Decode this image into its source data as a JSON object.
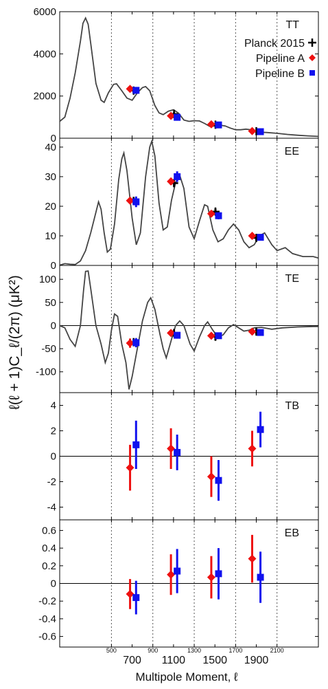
{
  "figure": {
    "ylabel": "ℓ(ℓ + 1)C_ℓ/(2π) (μK²)",
    "xlabel": "Multipole Moment, ℓ",
    "x_major_ticks": [
      "700",
      "1100",
      "1500",
      "1900"
    ],
    "x_minor_ticks": [
      "500",
      "900",
      "1300",
      "1700",
      "2100"
    ],
    "legend": [
      {
        "label": "Planck 2015",
        "marker": "plus",
        "color": "#000000"
      },
      {
        "label": "Pipeline A",
        "marker": "diamond",
        "color": "#ee1111"
      },
      {
        "label": "Pipeline B",
        "marker": "square",
        "color": "#1111ee"
      }
    ]
  },
  "chart_data": [
    {
      "type": "scatter",
      "panel": "TT",
      "ylim": [
        0,
        6000
      ],
      "yticks": [
        0,
        2000,
        4000,
        6000
      ],
      "series": [
        {
          "name": "Planck 2015",
          "points": [
            [
              714,
              2260,
              120
            ],
            [
              1105,
              1150,
              80
            ],
            [
              1505,
              640,
              60
            ],
            [
              1900,
              330,
              50
            ]
          ]
        },
        {
          "name": "Pipeline A",
          "points": [
            [
              680,
              2340,
              100
            ],
            [
              1075,
              1060,
              80
            ],
            [
              1465,
              660,
              60
            ],
            [
              1860,
              340,
              50
            ]
          ]
        },
        {
          "name": "Pipeline B",
          "points": [
            [
              738,
              2270,
              120
            ],
            [
              1135,
              990,
              80
            ],
            [
              1535,
              630,
              60
            ],
            [
              1940,
              310,
              50
            ]
          ]
        }
      ]
    },
    {
      "type": "scatter",
      "panel": "EE",
      "ylim": [
        0,
        43
      ],
      "yticks": [
        0,
        10,
        20,
        30,
        40
      ],
      "series": [
        {
          "name": "Planck 2015",
          "points": [
            [
              714,
              21.8,
              1.0
            ],
            [
              1105,
              27.8,
              1.2
            ],
            [
              1505,
              18.2,
              1.0
            ],
            [
              1900,
              9.3,
              1.0
            ]
          ]
        },
        {
          "name": "Pipeline A",
          "points": [
            [
              680,
              21.9,
              1.0
            ],
            [
              1075,
              28.4,
              1.2
            ],
            [
              1465,
              17.5,
              1.0
            ],
            [
              1860,
              10.0,
              1.0
            ]
          ]
        },
        {
          "name": "Pipeline B",
          "points": [
            [
              738,
              21.5,
              1.8
            ],
            [
              1135,
              30.0,
              1.8
            ],
            [
              1535,
              16.8,
              1.2
            ],
            [
              1940,
              9.5,
              1.0
            ]
          ]
        }
      ]
    },
    {
      "type": "scatter",
      "panel": "TE",
      "ylim": [
        -145,
        130
      ],
      "yticks": [
        -100,
        -50,
        0,
        50,
        100
      ],
      "series": [
        {
          "name": "Planck 2015",
          "points": [
            [
              714,
              -36,
              6
            ],
            [
              1105,
              -16,
              6
            ],
            [
              1505,
              -24,
              8
            ],
            [
              1900,
              -13,
              6
            ]
          ]
        },
        {
          "name": "Pipeline A",
          "points": [
            [
              680,
              -38,
              10
            ],
            [
              1075,
              -16,
              6
            ],
            [
              1465,
              -22,
              6
            ],
            [
              1860,
              -13,
              5
            ]
          ]
        },
        {
          "name": "Pipeline B",
          "points": [
            [
              738,
              -37,
              10
            ],
            [
              1135,
              -21,
              7
            ],
            [
              1535,
              -22,
              6
            ],
            [
              1940,
              -15,
              5
            ]
          ]
        }
      ]
    },
    {
      "type": "scatter",
      "panel": "TB",
      "ylim": [
        -5,
        5
      ],
      "yticks": [
        -4,
        -2,
        0,
        2,
        4
      ],
      "series": [
        {
          "name": "Pipeline A",
          "points": [
            [
              680,
              -0.9,
              1.8
            ],
            [
              1075,
              0.6,
              1.6
            ],
            [
              1465,
              -1.6,
              1.6
            ],
            [
              1860,
              0.6,
              1.4
            ]
          ]
        },
        {
          "name": "Pipeline B",
          "points": [
            [
              738,
              0.9,
              1.9
            ],
            [
              1135,
              0.3,
              1.4
            ],
            [
              1535,
              -1.9,
              1.6
            ],
            [
              1940,
              2.1,
              1.4
            ]
          ]
        }
      ]
    },
    {
      "type": "scatter",
      "panel": "EB",
      "ylim": [
        -0.72,
        0.72
      ],
      "yticks": [
        -0.6,
        -0.4,
        -0.2,
        0,
        0.2,
        0.4,
        0.6
      ],
      "series": [
        {
          "name": "Pipeline A",
          "points": [
            [
              680,
              -0.12,
              0.17
            ],
            [
              1075,
              0.1,
              0.23
            ],
            [
              1465,
              0.07,
              0.24
            ],
            [
              1860,
              0.28,
              0.27
            ]
          ]
        },
        {
          "name": "Pipeline B",
          "points": [
            [
              738,
              -0.16,
              0.19
            ],
            [
              1135,
              0.14,
              0.25
            ],
            [
              1535,
              0.11,
              0.29
            ],
            [
              1940,
              0.07,
              0.29
            ]
          ]
        }
      ]
    }
  ],
  "theory_curves": {
    "TT": [
      [
        0,
        800
      ],
      [
        50,
        1000
      ],
      [
        100,
        1900
      ],
      [
        150,
        3100
      ],
      [
        200,
        4600
      ],
      [
        225,
        5450
      ],
      [
        250,
        5700
      ],
      [
        275,
        5400
      ],
      [
        300,
        4500
      ],
      [
        350,
        2600
      ],
      [
        400,
        1800
      ],
      [
        430,
        1700
      ],
      [
        470,
        2150
      ],
      [
        520,
        2550
      ],
      [
        550,
        2580
      ],
      [
        600,
        2250
      ],
      [
        650,
        1900
      ],
      [
        700,
        1800
      ],
      [
        750,
        2150
      ],
      [
        800,
        2400
      ],
      [
        830,
        2450
      ],
      [
        870,
        2250
      ],
      [
        920,
        1550
      ],
      [
        960,
        1200
      ],
      [
        1000,
        1120
      ],
      [
        1050,
        1280
      ],
      [
        1100,
        1350
      ],
      [
        1150,
        1180
      ],
      [
        1200,
        860
      ],
      [
        1250,
        800
      ],
      [
        1300,
        830
      ],
      [
        1350,
        820
      ],
      [
        1400,
        700
      ],
      [
        1450,
        560
      ],
      [
        1500,
        580
      ],
      [
        1550,
        620
      ],
      [
        1600,
        580
      ],
      [
        1650,
        480
      ],
      [
        1700,
        400
      ],
      [
        1750,
        400
      ],
      [
        1800,
        430
      ],
      [
        1850,
        400
      ],
      [
        1900,
        330
      ],
      [
        1950,
        280
      ],
      [
        2000,
        270
      ],
      [
        2100,
        230
      ],
      [
        2200,
        180
      ],
      [
        2300,
        140
      ],
      [
        2400,
        110
      ],
      [
        2500,
        85
      ]
    ],
    "EE": [
      [
        0,
        0.1
      ],
      [
        50,
        0.6
      ],
      [
        100,
        0.4
      ],
      [
        150,
        0.3
      ],
      [
        200,
        1.5
      ],
      [
        250,
        5
      ],
      [
        300,
        11
      ],
      [
        350,
        18
      ],
      [
        375,
        21.5
      ],
      [
        400,
        19
      ],
      [
        430,
        11
      ],
      [
        460,
        4.5
      ],
      [
        490,
        5.5
      ],
      [
        530,
        14
      ],
      [
        570,
        29
      ],
      [
        600,
        36
      ],
      [
        620,
        38
      ],
      [
        650,
        32
      ],
      [
        700,
        16
      ],
      [
        740,
        7
      ],
      [
        780,
        11
      ],
      [
        830,
        30
      ],
      [
        870,
        40
      ],
      [
        890,
        42
      ],
      [
        920,
        37
      ],
      [
        960,
        21
      ],
      [
        1000,
        12
      ],
      [
        1040,
        13
      ],
      [
        1080,
        22
      ],
      [
        1120,
        28
      ],
      [
        1160,
        30.5
      ],
      [
        1200,
        26
      ],
      [
        1250,
        13
      ],
      [
        1300,
        9
      ],
      [
        1350,
        15
      ],
      [
        1400,
        20.5
      ],
      [
        1430,
        20
      ],
      [
        1480,
        12
      ],
      [
        1530,
        8
      ],
      [
        1580,
        9
      ],
      [
        1630,
        12
      ],
      [
        1680,
        14
      ],
      [
        1730,
        12
      ],
      [
        1780,
        8
      ],
      [
        1830,
        6
      ],
      [
        1880,
        7
      ],
      [
        1930,
        10
      ],
      [
        1980,
        11
      ],
      [
        2050,
        7
      ],
      [
        2100,
        5
      ],
      [
        2180,
        6
      ],
      [
        2250,
        4
      ],
      [
        2350,
        3
      ],
      [
        2450,
        3
      ],
      [
        2500,
        2.5
      ]
    ],
    "TE": [
      [
        0,
        0
      ],
      [
        50,
        -5
      ],
      [
        100,
        -30
      ],
      [
        150,
        -45
      ],
      [
        200,
        0
      ],
      [
        230,
        75
      ],
      [
        250,
        117
      ],
      [
        275,
        118
      ],
      [
        300,
        80
      ],
      [
        350,
        0
      ],
      [
        400,
        -40
      ],
      [
        440,
        -80
      ],
      [
        470,
        -60
      ],
      [
        500,
        -10
      ],
      [
        530,
        25
      ],
      [
        560,
        20
      ],
      [
        600,
        -40
      ],
      [
        640,
        -80
      ],
      [
        670,
        -138
      ],
      [
        700,
        -110
      ],
      [
        750,
        -50
      ],
      [
        800,
        10
      ],
      [
        850,
        50
      ],
      [
        880,
        60
      ],
      [
        920,
        35
      ],
      [
        970,
        -20
      ],
      [
        1000,
        -50
      ],
      [
        1030,
        -70
      ],
      [
        1080,
        -30
      ],
      [
        1120,
        0
      ],
      [
        1160,
        10
      ],
      [
        1200,
        0
      ],
      [
        1260,
        -40
      ],
      [
        1300,
        -55
      ],
      [
        1350,
        -25
      ],
      [
        1400,
        0
      ],
      [
        1430,
        8
      ],
      [
        1480,
        -10
      ],
      [
        1530,
        -25
      ],
      [
        1580,
        -20
      ],
      [
        1630,
        -5
      ],
      [
        1680,
        2
      ],
      [
        1730,
        -5
      ],
      [
        1780,
        -12
      ],
      [
        1830,
        -10
      ],
      [
        1880,
        -5
      ],
      [
        1950,
        -4
      ],
      [
        2050,
        -8
      ],
      [
        2150,
        -5
      ],
      [
        2300,
        -3
      ],
      [
        2450,
        -2
      ],
      [
        2500,
        -2
      ]
    ]
  }
}
